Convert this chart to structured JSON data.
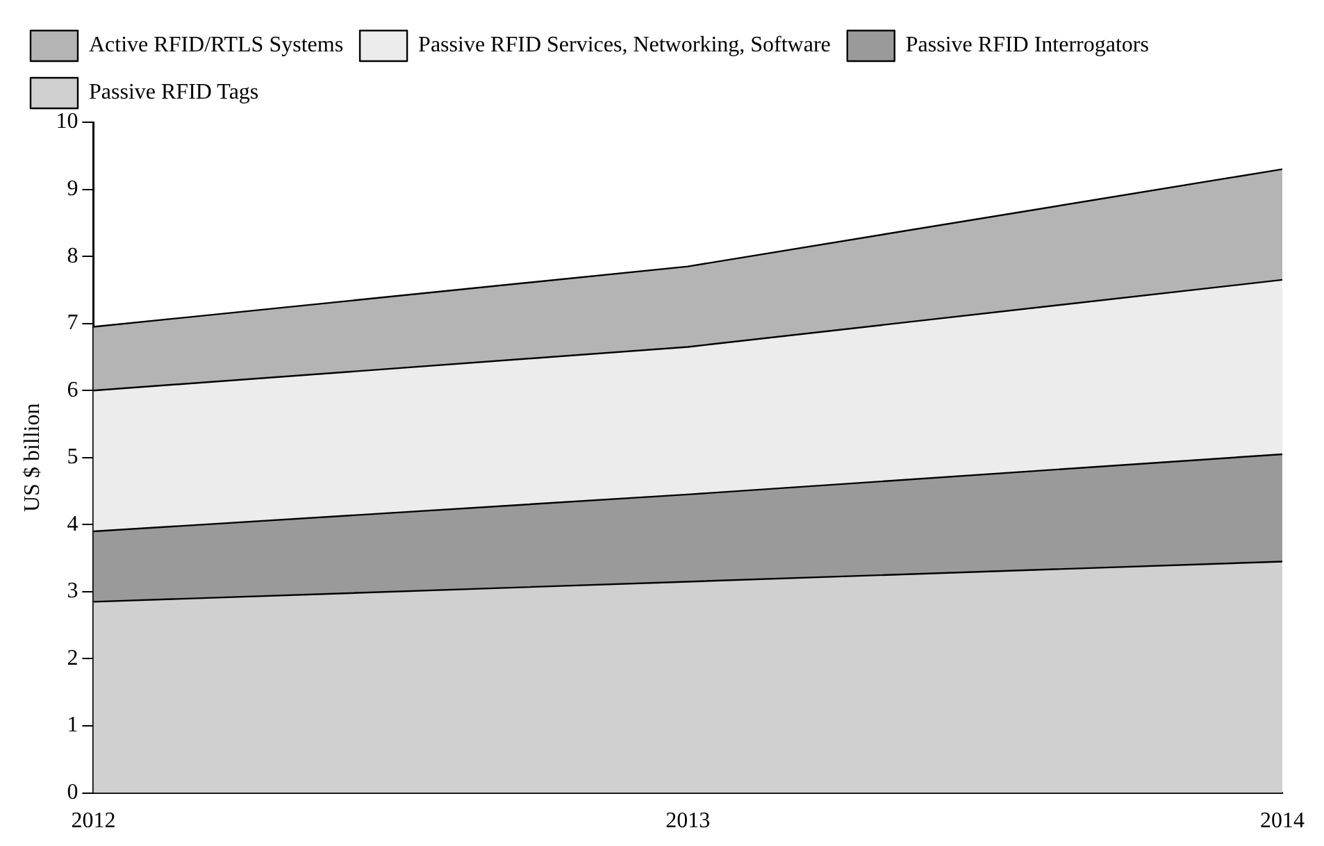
{
  "chart_data": {
    "type": "area",
    "stacked": true,
    "ylabel": "US $ billion",
    "x": [
      2012,
      2013,
      2014
    ],
    "xlim": [
      2012,
      2014
    ],
    "xticks": [
      2012,
      2013,
      2014
    ],
    "ylim": [
      0,
      10
    ],
    "yticks": [
      0,
      1,
      2,
      3,
      4,
      5,
      6,
      7,
      8,
      9,
      10
    ],
    "grid": false,
    "legend": "top left",
    "series": [
      {
        "name": "Passive RFID Tags",
        "color": "#d0d0d0",
        "values": [
          2.85,
          3.15,
          3.45
        ]
      },
      {
        "name": "Passive RFID Interrogators",
        "color": "#9a9a9a",
        "values": [
          1.05,
          1.3,
          1.6
        ]
      },
      {
        "name": "Passive RFID Services, Networking, Software",
        "color": "#ececec",
        "values": [
          2.1,
          2.2,
          2.6
        ]
      },
      {
        "name": "Active RFID/RTLS Systems",
        "color": "#b4b4b4",
        "values": [
          0.95,
          1.2,
          1.65
        ]
      }
    ]
  }
}
